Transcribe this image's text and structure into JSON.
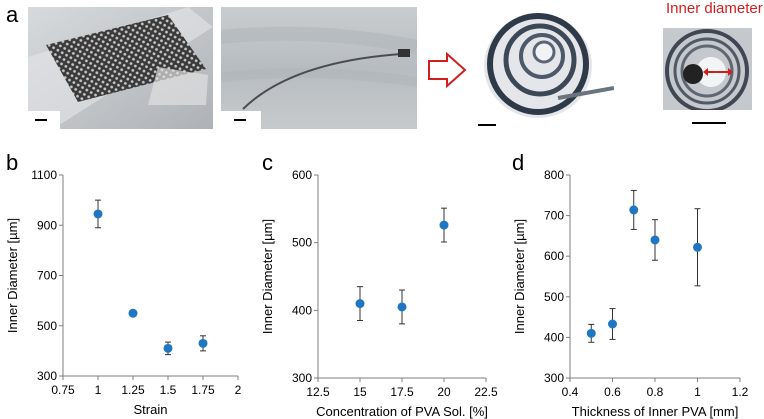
{
  "panels": {
    "a": "a",
    "b": "b",
    "c": "c",
    "d": "d"
  },
  "photo_annotation": {
    "inner_diameter_label": "Inner diameter",
    "label_color": "#d21e1e",
    "arrow_color": "#d21e1e"
  },
  "colors": {
    "marker": "#1f77c4",
    "axis": "#7f7f7f",
    "text": "#000000"
  },
  "chart_data": [
    {
      "type": "scatter",
      "xlabel": "Strain",
      "ylabel": "Inner Diameter [µm]",
      "xlim": [
        0.75,
        2
      ],
      "ylim": [
        300,
        1100
      ],
      "xticks": [
        "0.75",
        "1",
        "1.25",
        "1.5",
        "1.75",
        "2"
      ],
      "yticks": [
        "300",
        "500",
        "700",
        "900",
        "1100"
      ],
      "x": [
        1,
        1.25,
        1.5,
        1.75
      ],
      "y": [
        945,
        550,
        410,
        430
      ],
      "error": [
        55,
        0,
        25,
        30
      ]
    },
    {
      "type": "scatter",
      "xlabel": "Concentration of PVA Sol. [%]",
      "ylabel": "Inner Diameter [µm]",
      "xlim": [
        12.5,
        22.5
      ],
      "ylim": [
        300,
        600
      ],
      "xticks": [
        "12.5",
        "15",
        "17.5",
        "20",
        "22.5"
      ],
      "yticks": [
        "300",
        "400",
        "500",
        "600"
      ],
      "x": [
        15,
        17.5,
        20
      ],
      "y": [
        410,
        405,
        526
      ],
      "error": [
        25,
        25,
        25
      ]
    },
    {
      "type": "scatter",
      "xlabel": "Thickness of Inner PVA [mm]",
      "ylabel": "Inner Diameter [µm]",
      "xlim": [
        0.4,
        1.2
      ],
      "ylim": [
        300,
        800
      ],
      "xticks": [
        "0.4",
        "0.6",
        "0.8",
        "1",
        "1.2"
      ],
      "yticks": [
        "300",
        "400",
        "500",
        "600",
        "700",
        "800"
      ],
      "x": [
        0.5,
        0.6,
        0.7,
        0.8,
        1.0
      ],
      "y": [
        410,
        433,
        714,
        640,
        622
      ],
      "error": [
        22,
        38,
        48,
        50,
        95
      ]
    }
  ]
}
